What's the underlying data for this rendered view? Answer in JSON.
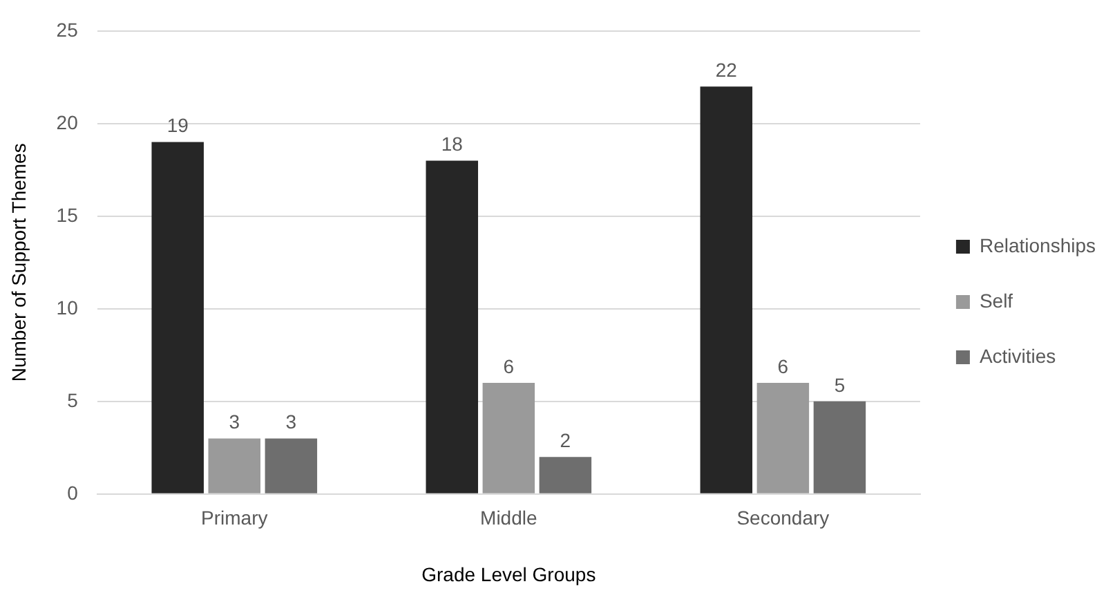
{
  "chart_data": {
    "type": "bar",
    "xlabel": "Grade Level Groups",
    "ylabel": "Number of Support Themes",
    "categories": [
      "Primary",
      "Middle",
      "Secondary"
    ],
    "series": [
      {
        "name": "Relationships",
        "color": "#262626",
        "values": [
          19,
          18,
          22
        ]
      },
      {
        "name": "Self",
        "color": "#9a9a9a",
        "values": [
          3,
          6,
          6
        ]
      },
      {
        "name": "Activities",
        "color": "#6e6e6e",
        "values": [
          3,
          2,
          5
        ]
      }
    ],
    "ylim": [
      0,
      25
    ],
    "yticks": [
      0,
      5,
      10,
      15,
      20,
      25
    ],
    "grid": "y",
    "legend": "right",
    "data_labels": true
  }
}
